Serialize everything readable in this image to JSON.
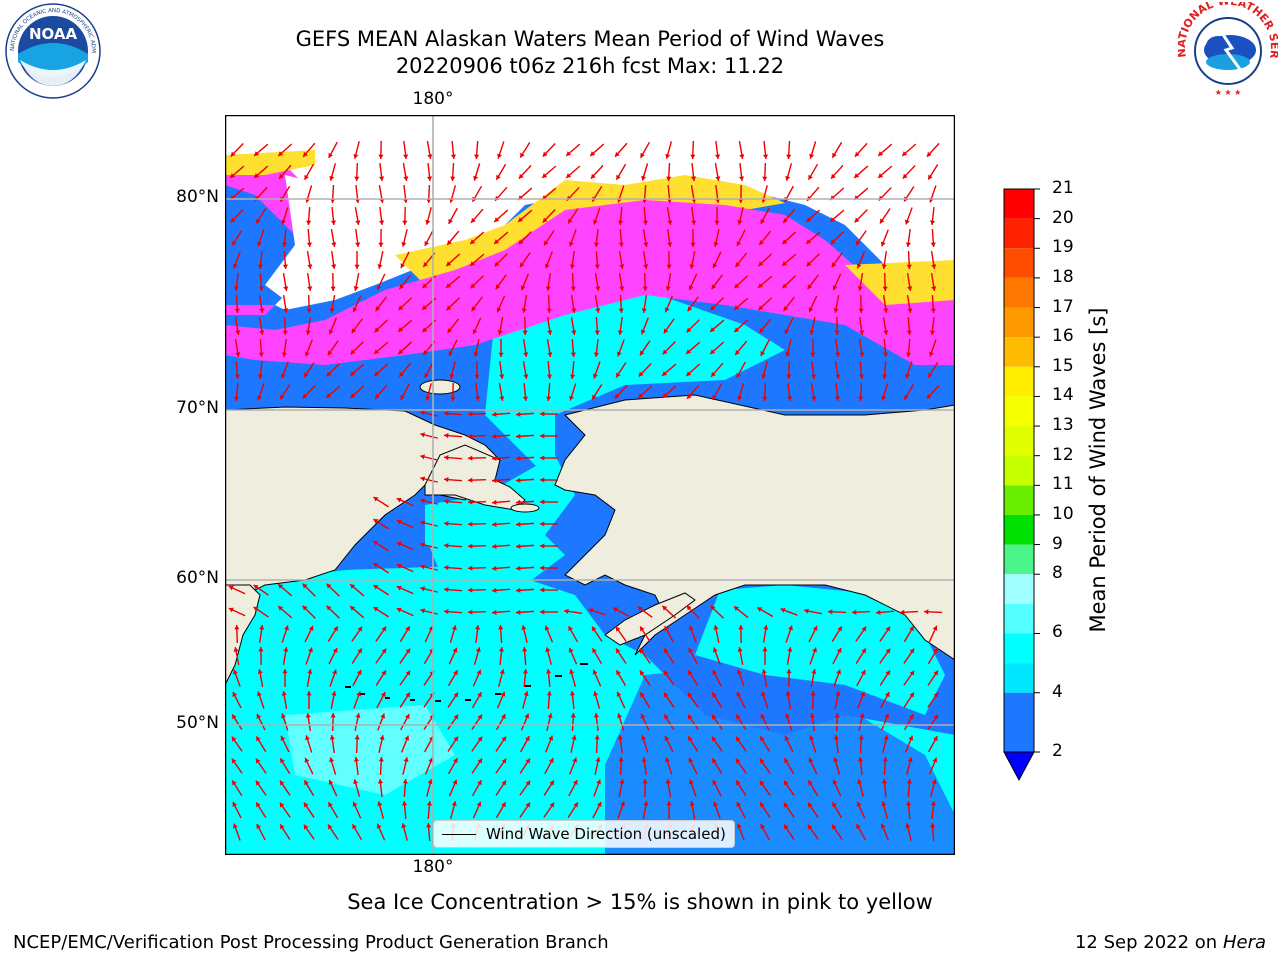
{
  "title": {
    "line1": "GEFS MEAN Alaskan Waters Mean Period of Wind Waves",
    "line2": "20220906 t06z 216h fcst   Max: 11.22"
  },
  "logos": {
    "left": "NOAA",
    "left_ring_text": "NATIONAL OCEANIC AND ATMOSPHERIC ADMINISTRATION · U.S. DEPARTMENT OF COMMERCE",
    "right_ring_text": "NATIONAL WEATHER SERVICE"
  },
  "map": {
    "lon_label_top": "180°",
    "lon_label_bottom": "180°",
    "lat_labels": [
      "80°N",
      "70°N",
      "60°N",
      "50°N"
    ],
    "legend_label": "Wind Wave Direction (unscaled)",
    "colors": {
      "land": "#efedde",
      "ice_region": "#ffffff",
      "wave_low": "#1e78ff",
      "wave_mid": "#00f0ff",
      "wave_light": "#8affff",
      "ice_pink": "#ff44ff",
      "ice_yellow": "#ffe030",
      "arrow": "#ee0000",
      "grid": "#b0b0b0"
    }
  },
  "colorbar": {
    "label": "Mean Period of Wind Waves [s]",
    "ticks": [
      "21",
      "20",
      "19",
      "18",
      "17",
      "16",
      "15",
      "14",
      "13",
      "12",
      "11",
      "10",
      "9",
      "8",
      "7",
      "6",
      "5",
      "4",
      "3",
      "2"
    ],
    "tick_labels_shown": [
      "21",
      "20",
      "19",
      "18",
      "17",
      "16",
      "15",
      "14",
      "13",
      "12",
      "11",
      "10",
      "9",
      "8",
      "6",
      "4",
      "2"
    ],
    "colors_top_to_bottom": [
      "#ff0000",
      "#ff2200",
      "#ff4d00",
      "#ff7700",
      "#ff9900",
      "#ffbb00",
      "#ffee00",
      "#f6ff00",
      "#e0ff00",
      "#c6ff00",
      "#6aee00",
      "#00e000",
      "#4cf58a",
      "#a0ffff",
      "#55ffff",
      "#00ffff",
      "#00e6ff",
      "#1e78ff"
    ],
    "extend_color": "#0000ff"
  },
  "ice_note": "Sea Ice Concentration > 15% is shown in pink to yellow",
  "footer": {
    "left": "NCEP/EMC/Verification Post Processing Product Generation Branch",
    "right_prefix": "12 Sep 2022 on",
    "right_host": "Hera"
  }
}
